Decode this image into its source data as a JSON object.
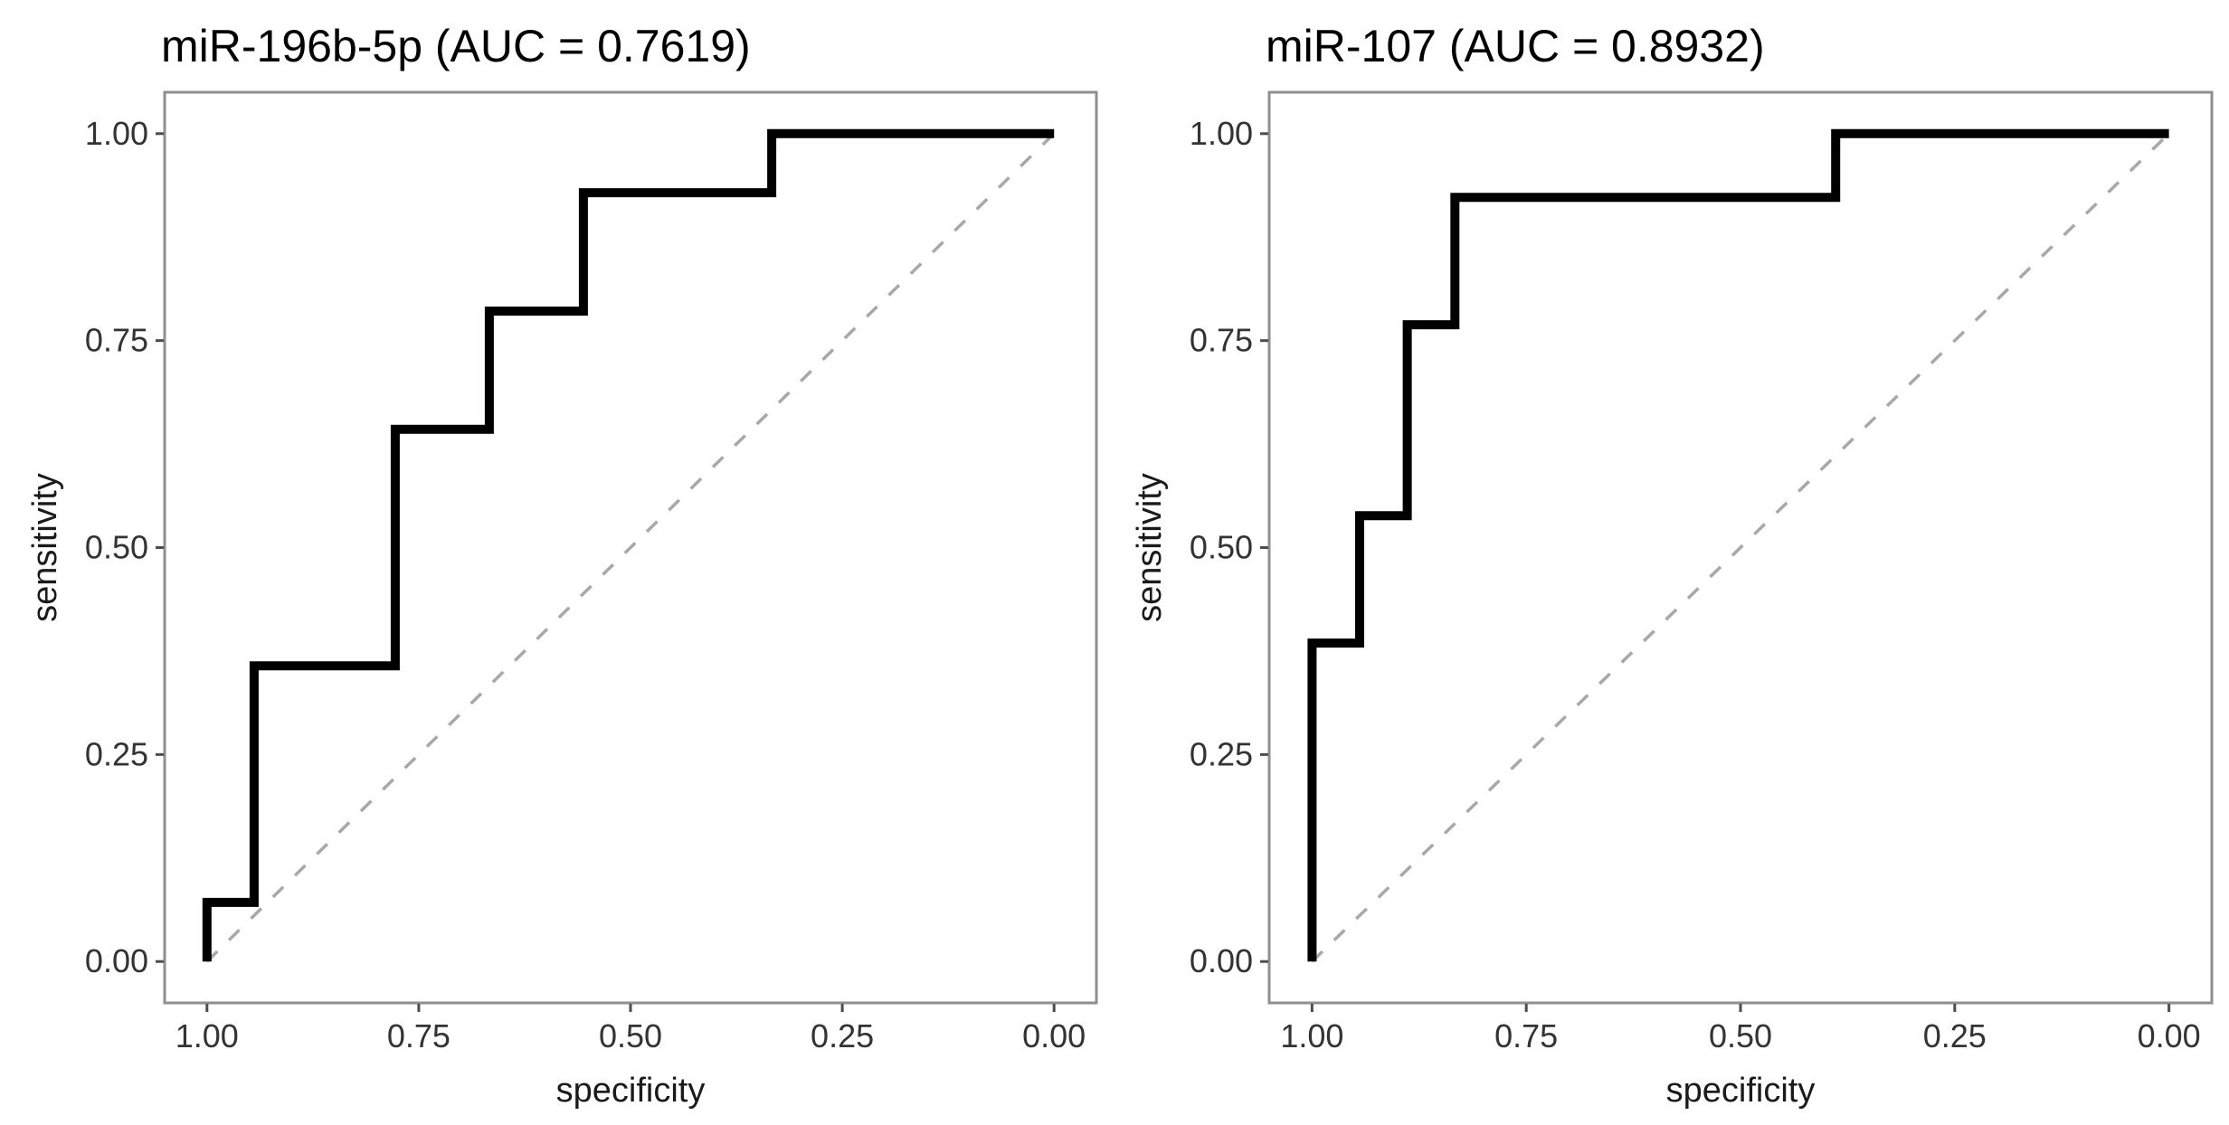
{
  "figure": {
    "background": "#ffffff"
  },
  "colors": {
    "roc_curve": "#000000",
    "diagonal_reference": "#a8a8a8",
    "panel_border": "#8f8f8f",
    "tick_mark": "#4d4d4d",
    "tick_label": "#333333",
    "title_text": "#000000",
    "axis_title_text": "#1a1a1a"
  },
  "chart_data": [
    {
      "type": "line",
      "subtype": "roc-step-curve",
      "title": "miR-196b-5p (AUC = 0.7619)",
      "auc": 0.7619,
      "xlabel": "specificity",
      "ylabel": "sensitivity",
      "x_ticks": [
        "1.00",
        "0.75",
        "0.50",
        "0.25",
        "0.00"
      ],
      "y_ticks": [
        "0.00",
        "0.25",
        "0.50",
        "0.75",
        "1.00"
      ],
      "x_axis_reversed": true,
      "xlim": [
        1.0,
        0.0
      ],
      "ylim": [
        0.0,
        1.0
      ],
      "grid": false,
      "legend": "none",
      "diagonal_reference": true,
      "roc_points_spec_sens": [
        [
          1.0,
          0.0
        ],
        [
          1.0,
          0.0714
        ],
        [
          0.9444,
          0.0714
        ],
        [
          0.9444,
          0.3571
        ],
        [
          0.7778,
          0.3571
        ],
        [
          0.7778,
          0.6429
        ],
        [
          0.6667,
          0.6429
        ],
        [
          0.6667,
          0.7857
        ],
        [
          0.5556,
          0.7857
        ],
        [
          0.5556,
          0.9286
        ],
        [
          0.3333,
          0.9286
        ],
        [
          0.3333,
          1.0
        ],
        [
          0.0,
          1.0
        ]
      ]
    },
    {
      "type": "line",
      "subtype": "roc-step-curve",
      "title": "miR-107 (AUC = 0.8932)",
      "auc": 0.8932,
      "xlabel": "specificity",
      "ylabel": "sensitivity",
      "x_ticks": [
        "1.00",
        "0.75",
        "0.50",
        "0.25",
        "0.00"
      ],
      "y_ticks": [
        "0.00",
        "0.25",
        "0.50",
        "0.75",
        "1.00"
      ],
      "x_axis_reversed": true,
      "xlim": [
        1.0,
        0.0
      ],
      "ylim": [
        0.0,
        1.0
      ],
      "grid": false,
      "legend": "none",
      "diagonal_reference": true,
      "roc_points_spec_sens": [
        [
          1.0,
          0.0
        ],
        [
          1.0,
          0.3846
        ],
        [
          0.9444,
          0.3846
        ],
        [
          0.9444,
          0.5385
        ],
        [
          0.8889,
          0.5385
        ],
        [
          0.8889,
          0.7692
        ],
        [
          0.8333,
          0.7692
        ],
        [
          0.8333,
          0.9231
        ],
        [
          0.3889,
          0.9231
        ],
        [
          0.3889,
          1.0
        ],
        [
          0.0,
          1.0
        ]
      ]
    }
  ]
}
